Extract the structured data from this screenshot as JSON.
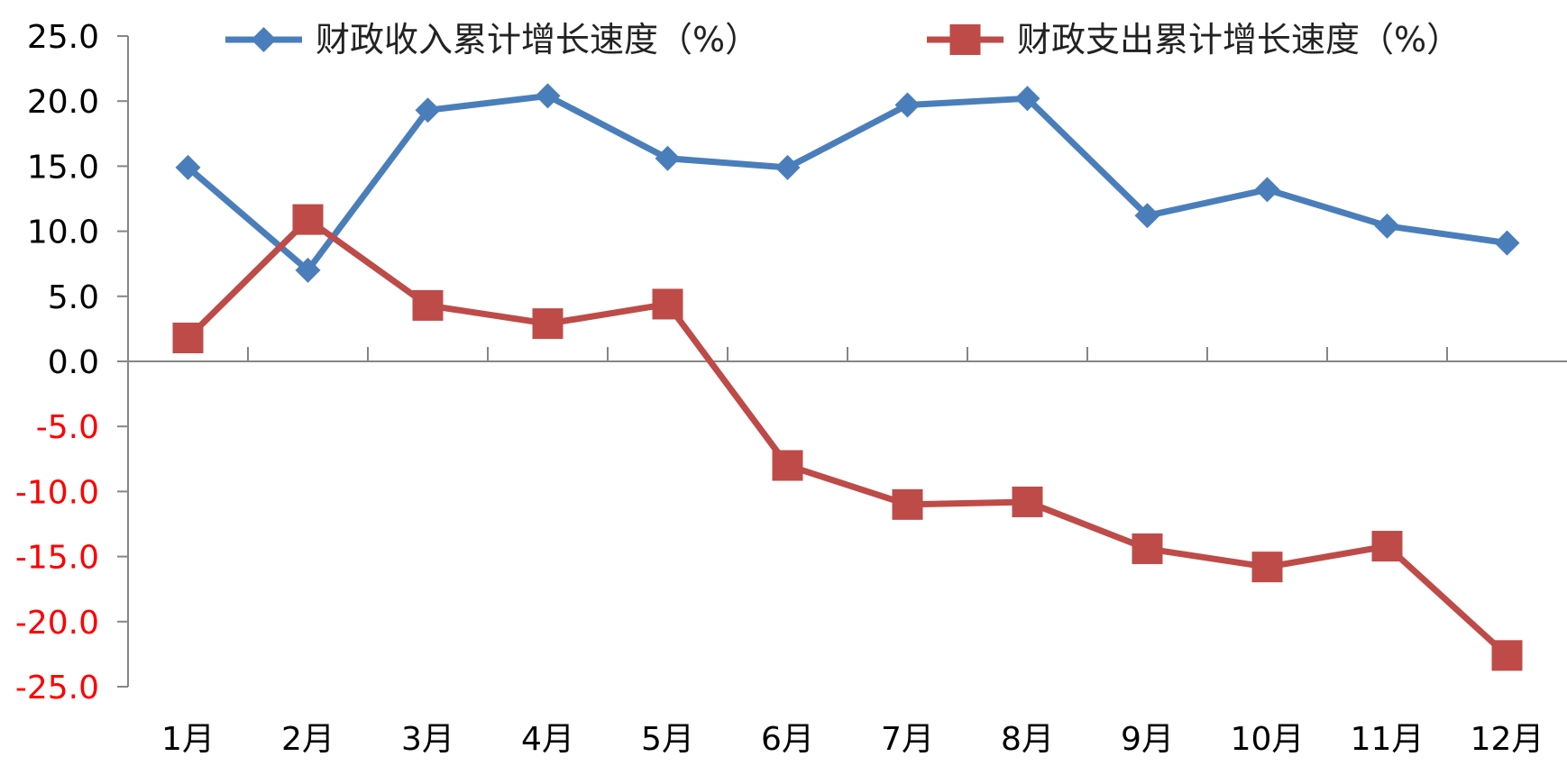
{
  "chart_data": {
    "type": "line",
    "categories": [
      "1月",
      "2月",
      "3月",
      "4月",
      "5月",
      "6月",
      "7月",
      "8月",
      "9月",
      "10月",
      "11月",
      "12月"
    ],
    "series": [
      {
        "name": "财政收入累计增长速度（%）",
        "color": "#4a7ebb",
        "marker": "diamond",
        "values": [
          14.9,
          7.0,
          19.3,
          20.4,
          15.6,
          14.9,
          19.7,
          20.2,
          11.2,
          13.2,
          10.4,
          9.1
        ]
      },
      {
        "name": "财政支出累计增长速度（%）",
        "color": "#be4b48",
        "marker": "square",
        "values": [
          1.8,
          10.9,
          4.3,
          2.9,
          4.4,
          -8.0,
          -11.0,
          -10.8,
          -14.4,
          -15.8,
          -14.2,
          -22.6
        ]
      }
    ],
    "ylim": [
      -25,
      25
    ],
    "yticks": [
      "25.0",
      "20.0",
      "15.0",
      "10.0",
      "5.0",
      "0.0",
      "-5.0",
      "-10.0",
      "-15.0",
      "-20.0",
      "-25.0"
    ],
    "ytick_values": [
      25,
      20,
      15,
      10,
      5,
      0,
      -5,
      -10,
      -15,
      -20,
      -25
    ],
    "positive_tick_color": "#000000",
    "negative_tick_color": "#ff0000",
    "axis_color": "#868686",
    "legend_position": "top",
    "grid": false
  }
}
